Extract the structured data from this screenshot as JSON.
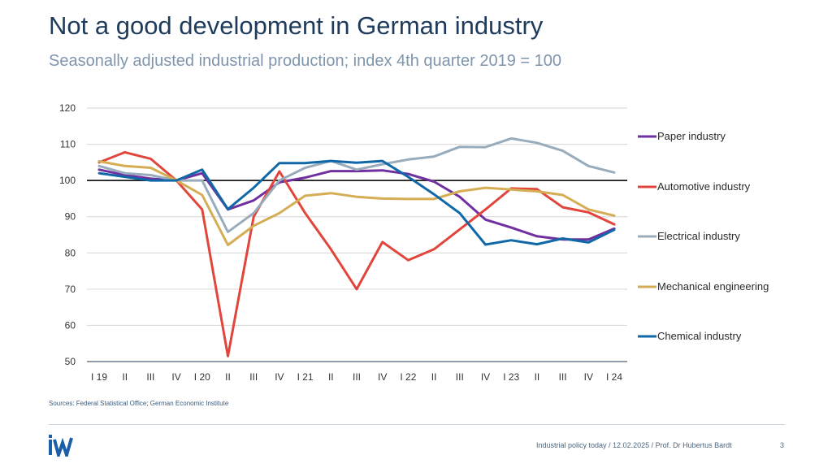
{
  "header": {
    "title": "Not a good development in German industry",
    "subtitle": "Seasonally adjusted industrial production; index 4th quarter 2019 = 100"
  },
  "chart_data": {
    "type": "line",
    "categories": [
      "I 19",
      "II",
      "III",
      "IV",
      "I 20",
      "II",
      "III",
      "IV",
      "I 21",
      "II",
      "III",
      "IV",
      "I 22",
      "II",
      "III",
      "IV",
      "I 23",
      "II",
      "III",
      "IV",
      "I 24"
    ],
    "yticks": [
      50,
      60,
      70,
      80,
      90,
      100,
      110,
      120
    ],
    "ylim": [
      50,
      120
    ],
    "reference_line": 100,
    "series": [
      {
        "name": "Paper industry",
        "color": "#7030a0",
        "values": [
          103,
          101.5,
          100.5,
          100,
          102,
          92,
          94.5,
          99.5,
          100.8,
          102.6,
          102.6,
          102.8,
          101.8,
          99.7,
          95.5,
          89.2,
          87,
          84.6,
          83.7,
          83.7,
          86.7
        ]
      },
      {
        "name": "Automotive industry",
        "color": "#e0463c",
        "values": [
          105,
          107.8,
          106,
          100,
          92,
          51.5,
          90,
          102.5,
          91,
          81,
          70,
          83,
          78,
          81,
          86.5,
          92,
          97.8,
          97.6,
          92.6,
          91.2,
          87.9
        ]
      },
      {
        "name": "Electrical industry",
        "color": "#98acbc",
        "values": [
          104,
          102,
          101.5,
          100,
          100,
          85.8,
          91,
          100,
          103.5,
          105.4,
          103,
          104.5,
          105.8,
          106.6,
          109.3,
          109.2,
          111.6,
          110.4,
          108.2,
          104,
          102.2
        ]
      },
      {
        "name": "Mechanical engineering",
        "color": "#d4ad55",
        "values": [
          105.3,
          104,
          103.5,
          100,
          96,
          82.2,
          87.5,
          91,
          95.8,
          96.5,
          95.5,
          95,
          94.9,
          94.9,
          97,
          98,
          97.5,
          97,
          96,
          92,
          90.3
        ]
      },
      {
        "name": "Chemical industry",
        "color": "#1168a8",
        "values": [
          102,
          101,
          100,
          100,
          103,
          92.1,
          98,
          104.8,
          104.8,
          105.4,
          104.9,
          105.4,
          101,
          96.2,
          91,
          82.3,
          83.5,
          82.4,
          84,
          82.9,
          86.4
        ]
      }
    ]
  },
  "source": "Sources: Federal Statistical Office; German Economic Institute",
  "logo": {
    "text": "IW",
    "color": "#1a5fa8"
  },
  "footer": {
    "text": "Industrial policy today / 12.02.2025 / Prof. Dr Hubertus Bardt",
    "page": "3"
  }
}
